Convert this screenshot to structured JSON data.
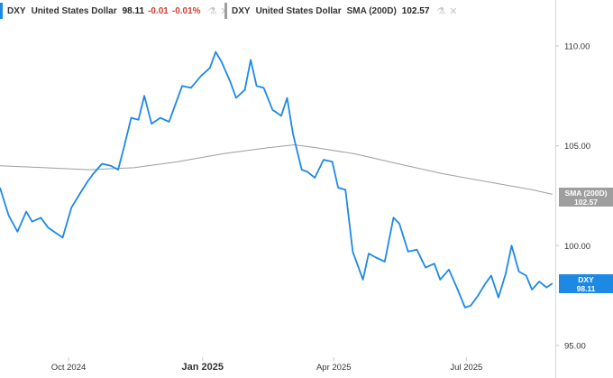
{
  "legend": {
    "dxy": {
      "symbol": "DXY",
      "name": "United States Dollar",
      "price": "98.11",
      "change": "-0.01",
      "change_pct": "-0.01%",
      "color": "#1e88e5"
    },
    "sma": {
      "symbol": "DXY",
      "name": "United States Dollar",
      "indicator": "SMA (200D)",
      "value": "102.57",
      "color": "#9e9e9e"
    },
    "icons": [
      "flask-icon",
      "close-icon"
    ]
  },
  "price_tags": {
    "sma_label": "SMA (200D)",
    "sma_value": "102.57",
    "dxy_label": "DXY",
    "dxy_value": "98.11"
  },
  "chart_data": {
    "type": "line",
    "y_ticks": [
      "110.00",
      "105.00",
      "100.00",
      "95.00"
    ],
    "y_tick_values": [
      110,
      105,
      100,
      95
    ],
    "x_ticks": [
      "Oct 2024",
      "Jan 2025",
      "Apr 2025",
      "Jul 2025"
    ],
    "x_tick_dates": [
      "2024-10-01",
      "2025-01-01",
      "2025-04-01",
      "2025-07-01"
    ],
    "x_bold": [
      false,
      true,
      false,
      false
    ],
    "ylim": [
      94.5,
      112.3
    ],
    "xlim": [
      "2024-08-15",
      "2025-08-31"
    ],
    "grid": false,
    "series": [
      {
        "name": "DXY",
        "color": "#1e88e5",
        "points": [
          [
            "2024-08-15",
            102.9
          ],
          [
            "2024-08-21",
            101.5
          ],
          [
            "2024-08-27",
            100.7
          ],
          [
            "2024-09-02",
            101.7
          ],
          [
            "2024-09-06",
            101.2
          ],
          [
            "2024-09-12",
            101.4
          ],
          [
            "2024-09-17",
            100.9
          ],
          [
            "2024-09-23",
            100.6
          ],
          [
            "2024-09-27",
            100.4
          ],
          [
            "2024-10-03",
            101.9
          ],
          [
            "2024-10-08",
            102.5
          ],
          [
            "2024-10-14",
            103.2
          ],
          [
            "2024-10-18",
            103.6
          ],
          [
            "2024-10-24",
            104.1
          ],
          [
            "2024-10-30",
            104.0
          ],
          [
            "2024-11-04",
            103.8
          ],
          [
            "2024-11-08",
            104.9
          ],
          [
            "2024-11-13",
            106.4
          ],
          [
            "2024-11-18",
            106.3
          ],
          [
            "2024-11-22",
            107.5
          ],
          [
            "2024-11-27",
            106.1
          ],
          [
            "2024-12-03",
            106.4
          ],
          [
            "2024-12-09",
            106.2
          ],
          [
            "2024-12-13",
            107.0
          ],
          [
            "2024-12-18",
            108.0
          ],
          [
            "2024-12-24",
            107.9
          ],
          [
            "2024-12-31",
            108.5
          ],
          [
            "2025-01-06",
            108.9
          ],
          [
            "2025-01-10",
            109.7
          ],
          [
            "2025-01-14",
            109.2
          ],
          [
            "2025-01-20",
            108.2
          ],
          [
            "2025-01-24",
            107.4
          ],
          [
            "2025-01-30",
            107.8
          ],
          [
            "2025-02-03",
            109.3
          ],
          [
            "2025-02-07",
            108.0
          ],
          [
            "2025-02-12",
            107.9
          ],
          [
            "2025-02-18",
            106.8
          ],
          [
            "2025-02-24",
            106.5
          ],
          [
            "2025-02-28",
            107.4
          ],
          [
            "2025-03-04",
            105.6
          ],
          [
            "2025-03-10",
            103.8
          ],
          [
            "2025-03-14",
            103.7
          ],
          [
            "2025-03-19",
            103.4
          ],
          [
            "2025-03-25",
            104.3
          ],
          [
            "2025-03-31",
            104.2
          ],
          [
            "2025-04-04",
            102.9
          ],
          [
            "2025-04-09",
            102.8
          ],
          [
            "2025-04-14",
            99.7
          ],
          [
            "2025-04-21",
            98.3
          ],
          [
            "2025-04-25",
            99.6
          ],
          [
            "2025-04-30",
            99.4
          ],
          [
            "2025-05-06",
            99.2
          ],
          [
            "2025-05-12",
            101.4
          ],
          [
            "2025-05-16",
            101.1
          ],
          [
            "2025-05-22",
            99.7
          ],
          [
            "2025-05-28",
            99.8
          ],
          [
            "2025-06-03",
            98.9
          ],
          [
            "2025-06-09",
            99.1
          ],
          [
            "2025-06-13",
            98.3
          ],
          [
            "2025-06-19",
            98.8
          ],
          [
            "2025-06-25",
            97.8
          ],
          [
            "2025-06-30",
            96.9
          ],
          [
            "2025-07-04",
            97.0
          ],
          [
            "2025-07-09",
            97.5
          ],
          [
            "2025-07-14",
            98.1
          ],
          [
            "2025-07-18",
            98.5
          ],
          [
            "2025-07-23",
            97.4
          ],
          [
            "2025-07-28",
            98.6
          ],
          [
            "2025-08-01",
            100.0
          ],
          [
            "2025-08-06",
            98.7
          ],
          [
            "2025-08-11",
            98.5
          ],
          [
            "2025-08-15",
            97.8
          ],
          [
            "2025-08-20",
            98.2
          ],
          [
            "2025-08-25",
            97.9
          ],
          [
            "2025-08-29",
            98.11
          ]
        ]
      },
      {
        "name": "SMA (200D)",
        "color": "#9e9e9e",
        "points": [
          [
            "2024-08-15",
            104.0
          ],
          [
            "2024-09-15",
            103.9
          ],
          [
            "2024-10-15",
            103.8
          ],
          [
            "2024-11-15",
            103.9
          ],
          [
            "2024-12-15",
            104.2
          ],
          [
            "2025-01-15",
            104.6
          ],
          [
            "2025-02-15",
            104.9
          ],
          [
            "2025-03-05",
            105.05
          ],
          [
            "2025-03-20",
            104.9
          ],
          [
            "2025-04-15",
            104.6
          ],
          [
            "2025-05-15",
            104.1
          ],
          [
            "2025-06-15",
            103.6
          ],
          [
            "2025-07-15",
            103.2
          ],
          [
            "2025-08-15",
            102.8
          ],
          [
            "2025-08-29",
            102.57
          ]
        ]
      }
    ]
  }
}
